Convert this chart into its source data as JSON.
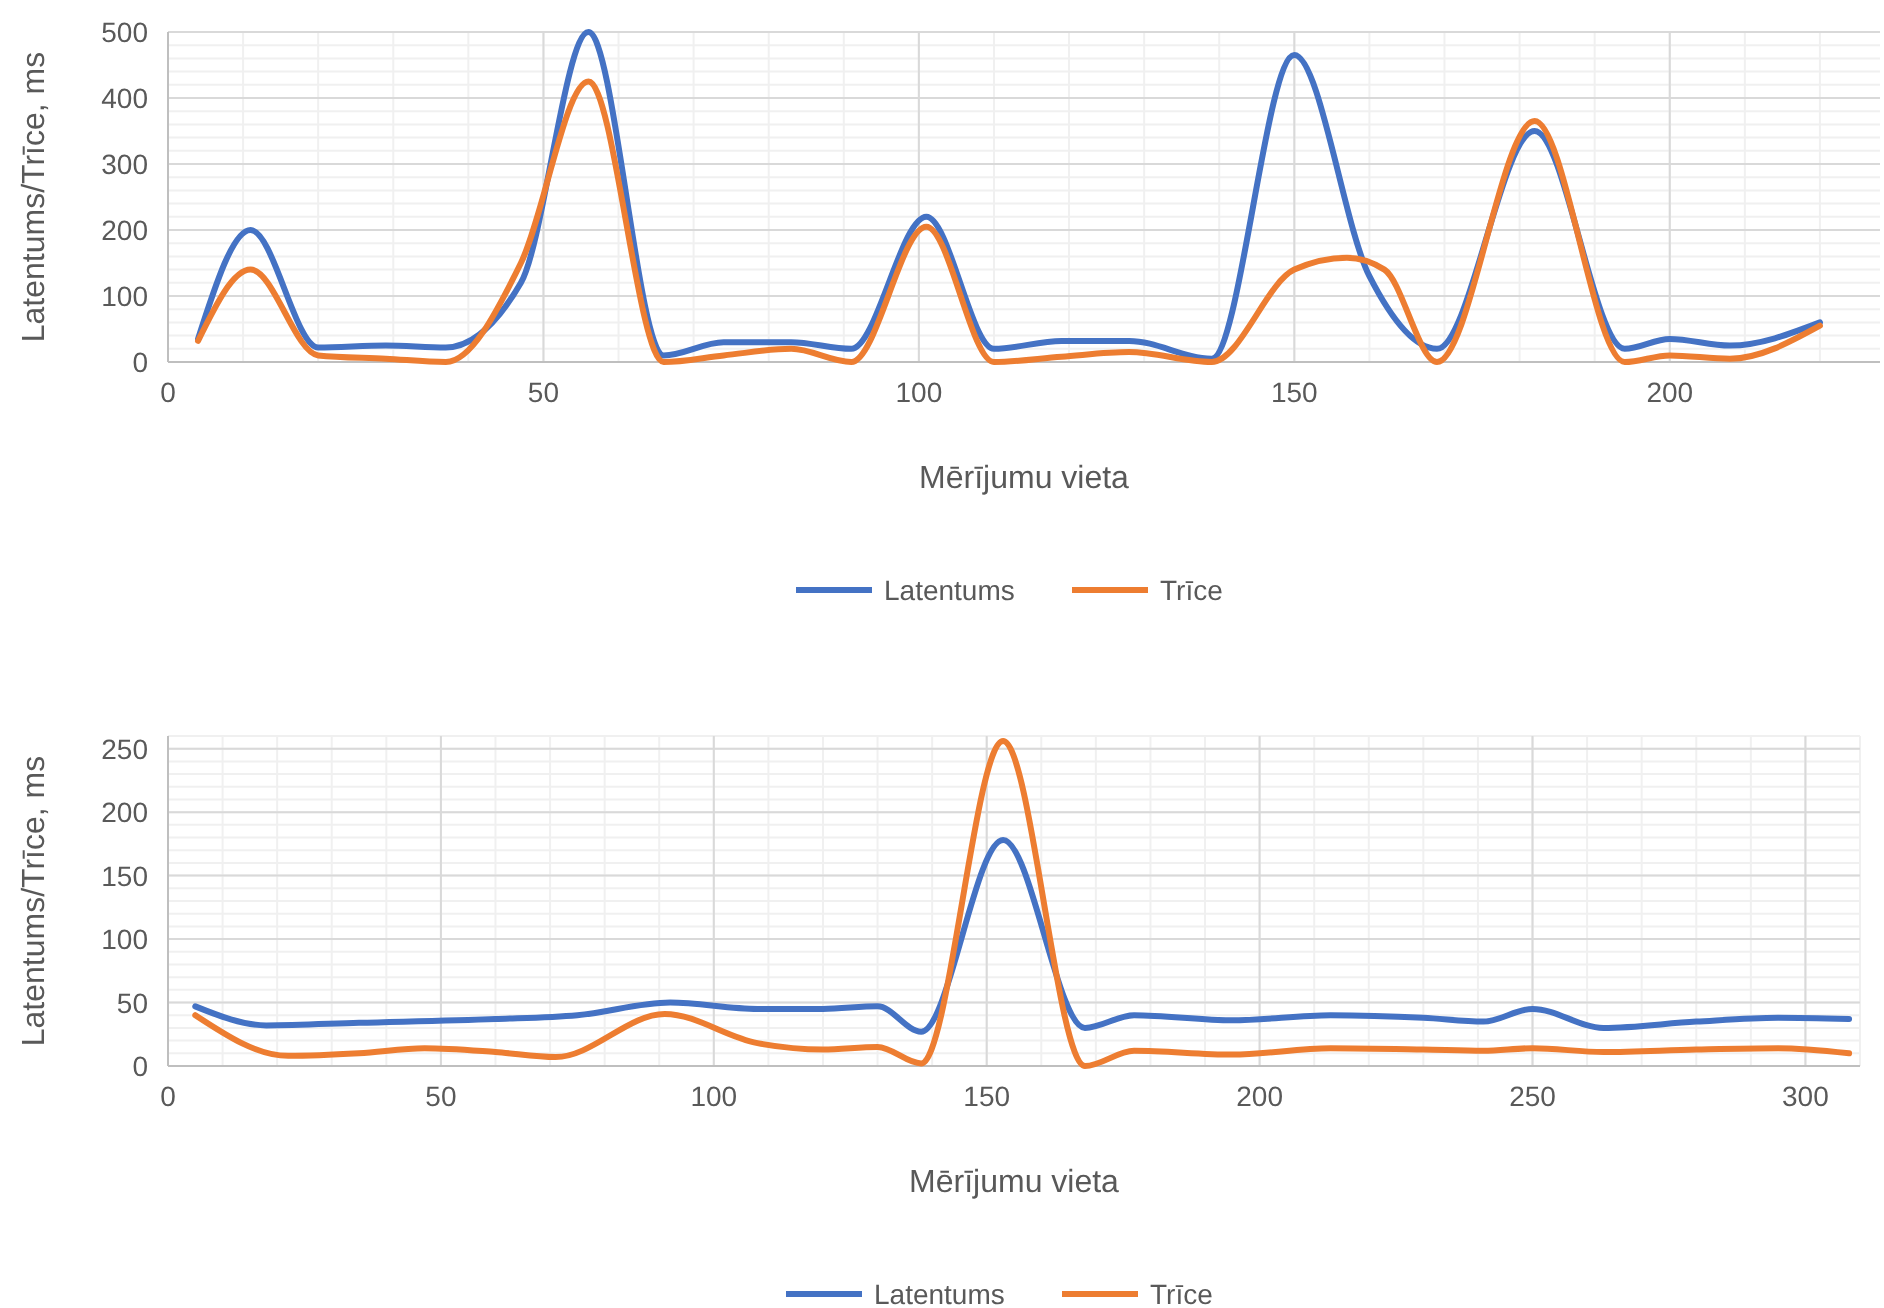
{
  "chart_data": [
    {
      "type": "line",
      "xlabel": "Mērījumu vieta",
      "ylabel": "Latentums/Trīce, ms",
      "xlim": [
        0,
        228
      ],
      "xticks": [
        0,
        50,
        100,
        150,
        200
      ],
      "ylim": [
        0,
        500
      ],
      "yticks": [
        0,
        100,
        200,
        300,
        400,
        500
      ],
      "grid": true,
      "legend": "bottom",
      "line_style": "solid",
      "marker": "none",
      "series": [
        {
          "name": "Latentums",
          "color": "#4472c4",
          "x": [
            4,
            11,
            20,
            29,
            37,
            47,
            56,
            66,
            74,
            83,
            91,
            101,
            110,
            119,
            128,
            139,
            150,
            160,
            169,
            182,
            194,
            200,
            208,
            220
          ],
          "values": [
            35,
            200,
            22,
            25,
            22,
            120,
            500,
            10,
            30,
            30,
            20,
            220,
            20,
            32,
            32,
            5,
            465,
            130,
            20,
            350,
            20,
            35,
            25,
            60
          ]
        },
        {
          "name": "Trīce",
          "color": "#ed7d31",
          "x": [
            4,
            11,
            20,
            29,
            37,
            47,
            56,
            66,
            74,
            83,
            91,
            101,
            110,
            119,
            128,
            139,
            150,
            157,
            162,
            169,
            182,
            194,
            200,
            208,
            220
          ],
          "values": [
            32,
            140,
            10,
            5,
            0,
            150,
            425,
            0,
            10,
            20,
            0,
            205,
            0,
            8,
            15,
            0,
            140,
            158,
            140,
            0,
            365,
            0,
            10,
            5,
            55
          ]
        }
      ]
    },
    {
      "type": "line",
      "xlabel": "Mērījumu vieta",
      "ylabel": "Latentums/Trīce, ms",
      "xlim": [
        0,
        310
      ],
      "xticks": [
        0,
        50,
        100,
        150,
        200,
        250,
        300
      ],
      "ylim": [
        0,
        260
      ],
      "yticks": [
        0,
        50,
        100,
        150,
        200,
        250
      ],
      "grid": true,
      "legend": "bottom",
      "line_style": "solid",
      "marker": "none",
      "series": [
        {
          "name": "Latentums",
          "color": "#4472c4",
          "x": [
            5,
            18,
            35,
            60,
            75,
            92,
            108,
            120,
            130,
            138,
            153,
            168,
            177,
            195,
            213,
            230,
            241,
            250,
            263,
            280,
            295,
            308
          ],
          "values": [
            47,
            32,
            34,
            37,
            40,
            50,
            45,
            45,
            47,
            27,
            178,
            30,
            40,
            36,
            40,
            38,
            35,
            45,
            30,
            35,
            38,
            37
          ]
        },
        {
          "name": "Trīce",
          "color": "#ed7d31",
          "x": [
            5,
            22,
            35,
            47,
            60,
            71,
            91,
            108,
            120,
            130,
            138,
            153,
            168,
            177,
            195,
            213,
            230,
            241,
            250,
            263,
            280,
            295,
            308
          ],
          "values": [
            40,
            8,
            10,
            14,
            11,
            7,
            41,
            18,
            13,
            15,
            2,
            256,
            0,
            12,
            9,
            14,
            13,
            12,
            14,
            11,
            13,
            14,
            10
          ]
        }
      ]
    }
  ]
}
